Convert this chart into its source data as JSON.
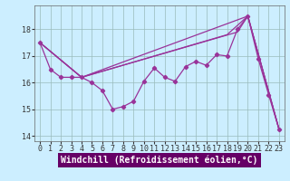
{
  "series": [
    {
      "x": [
        0,
        1,
        2,
        3,
        4,
        5,
        6,
        7,
        8,
        9,
        10,
        11,
        12,
        13,
        14,
        15,
        16,
        17,
        18,
        19,
        20,
        21,
        22,
        23
      ],
      "y": [
        17.5,
        16.5,
        16.2,
        16.2,
        16.2,
        16.0,
        15.7,
        15.0,
        15.1,
        15.3,
        16.05,
        16.55,
        16.2,
        16.05,
        16.6,
        16.8,
        16.65,
        17.05,
        17.0,
        18.0,
        18.5,
        16.9,
        15.55,
        14.25
      ],
      "has_markers": true
    },
    {
      "x": [
        0,
        4,
        20,
        23
      ],
      "y": [
        17.5,
        16.2,
        18.5,
        14.25
      ],
      "has_markers": false
    },
    {
      "x": [
        0,
        4,
        19,
        20,
        23
      ],
      "y": [
        17.5,
        16.2,
        17.9,
        18.5,
        14.25
      ],
      "has_markers": false
    },
    {
      "x": [
        0,
        4,
        18,
        20,
        23
      ],
      "y": [
        17.5,
        16.2,
        17.8,
        18.5,
        14.25
      ],
      "has_markers": false
    }
  ],
  "line_color": "#993399",
  "bg_color": "#cceeff",
  "grid_color": "#99bbbb",
  "xlabel": "Windchill (Refroidissement éolien,°C)",
  "xlabel_fontsize": 7,
  "xlabel_bg": "#660066",
  "xlabel_fg": "#ffffff",
  "tick_fontsize": 6,
  "xlim": [
    -0.5,
    23.5
  ],
  "ylim": [
    13.8,
    18.9
  ],
  "yticks": [
    14,
    15,
    16,
    17,
    18
  ],
  "xticks": [
    0,
    1,
    2,
    3,
    4,
    5,
    6,
    7,
    8,
    9,
    10,
    11,
    12,
    13,
    14,
    15,
    16,
    17,
    18,
    19,
    20,
    21,
    22,
    23
  ]
}
